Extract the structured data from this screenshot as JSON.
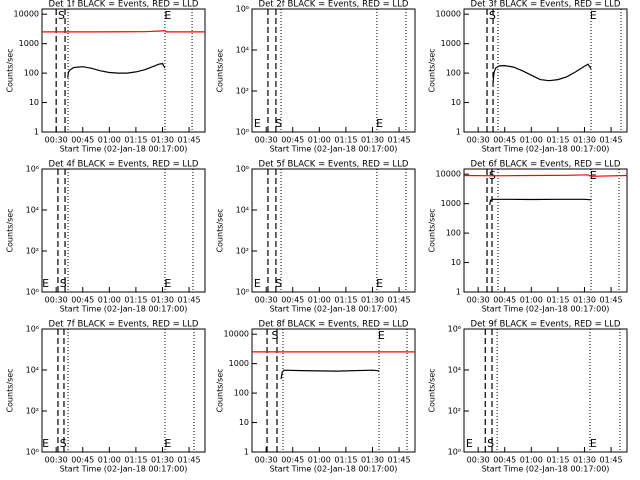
{
  "chart_data": [
    {
      "type": "line",
      "title": "Det 1f BLACK = Events, RED = LLD",
      "x_label": "Start Time (02-Jan-18 00:17:00)",
      "y_label": "Counts/sec",
      "ylog": true,
      "xlim": [
        22,
        114
      ],
      "xticks": [
        {
          "value": 30,
          "label": "00:30"
        },
        {
          "value": 45,
          "label": "00:45"
        },
        {
          "value": 60,
          "label": "01:00"
        },
        {
          "value": 75,
          "label": "01:15"
        },
        {
          "value": 90,
          "label": "01:30"
        },
        {
          "value": 105,
          "label": "01:45"
        }
      ],
      "ylim": [
        1,
        15000
      ],
      "yticks": [
        1,
        10,
        100,
        1000,
        10000
      ],
      "series": [
        {
          "color": "#000000",
          "x": [
            36.5,
            37,
            38,
            40,
            45,
            50,
            55,
            60,
            65,
            70,
            75,
            80,
            85,
            88,
            90,
            91.3
          ],
          "values": [
            70,
            110,
            130,
            155,
            165,
            145,
            120,
            105,
            100,
            100,
            110,
            130,
            170,
            200,
            210,
            150
          ]
        },
        {
          "color": "#ff0000",
          "x": [
            22,
            50,
            80,
            90,
            91.3,
            92,
            114
          ],
          "values": [
            2500,
            2500,
            2550,
            2700,
            2800,
            2500,
            2500
          ]
        }
      ],
      "vlines": [
        {
          "x": 30,
          "style": "dashed"
        },
        {
          "x": 35,
          "style": "dashed"
        },
        {
          "x": 36.7,
          "style": "dotted"
        },
        {
          "x": 91.4,
          "style": "dotted"
        },
        {
          "x": 106.7,
          "style": "dotted"
        }
      ],
      "annotation_pos": "top",
      "annotations": [
        {
          "text": "S",
          "x": 33
        },
        {
          "text": "E",
          "x": 93
        }
      ]
    },
    {
      "type": "line",
      "title": "Det 2f BLACK = Events, RED = LLD",
      "x_label": "Start Time (02-Jan-18 00:17:00)",
      "y_label": "Counts/sec",
      "ylog": true,
      "xlim": [
        22,
        114
      ],
      "xticks": [
        {
          "value": 30,
          "label": "00:30"
        },
        {
          "value": 45,
          "label": "00:45"
        },
        {
          "value": 60,
          "label": "01:00"
        },
        {
          "value": 75,
          "label": "01:15"
        },
        {
          "value": 90,
          "label": "01:30"
        },
        {
          "value": 105,
          "label": "01:45"
        }
      ],
      "ylim": [
        1,
        1000000
      ],
      "yticks": [
        {
          "value": 1,
          "label": "10⁰"
        },
        {
          "value": 100,
          "label": "10²"
        },
        {
          "value": 10000,
          "label": "10⁴"
        },
        {
          "value": 1000000,
          "label": "10⁶"
        }
      ],
      "series": [],
      "vlines": [
        {
          "x": 31,
          "style": "dashed"
        },
        {
          "x": 35.5,
          "style": "dashed"
        },
        {
          "x": 38.4,
          "style": "dotted"
        },
        {
          "x": 92.5,
          "style": "dotted"
        },
        {
          "x": 108.9,
          "style": "dotted"
        }
      ],
      "annotation_pos": "bottom",
      "annotations": [
        {
          "text": "E",
          "x": 25
        },
        {
          "text": "S",
          "x": 37
        },
        {
          "text": "E",
          "x": 94
        }
      ]
    },
    {
      "type": "line",
      "title": "Det 3f BLACK = Events, RED = LLD",
      "x_label": "Start Time (02-Jan-18 00:17:00)",
      "y_label": "Counts/sec",
      "ylog": true,
      "xlim": [
        22,
        114
      ],
      "xticks": [
        {
          "value": 30,
          "label": "00:30"
        },
        {
          "value": 45,
          "label": "00:45"
        },
        {
          "value": 60,
          "label": "01:00"
        },
        {
          "value": 75,
          "label": "01:15"
        },
        {
          "value": 90,
          "label": "01:30"
        },
        {
          "value": 105,
          "label": "01:45"
        }
      ],
      "ylim": [
        1,
        15000
      ],
      "yticks": [
        1,
        10,
        100,
        1000,
        10000
      ],
      "series": [
        {
          "color": "#000000",
          "x": [
            38.4,
            39,
            40,
            42,
            45,
            50,
            55,
            60,
            65,
            70,
            75,
            80,
            85,
            90,
            92,
            93.7
          ],
          "values": [
            50,
            110,
            150,
            175,
            180,
            160,
            120,
            85,
            60,
            55,
            60,
            75,
            110,
            170,
            200,
            140
          ]
        }
      ],
      "vlines": [
        {
          "x": 35,
          "style": "dashed"
        },
        {
          "x": 38.4,
          "style": "dashed"
        },
        {
          "x": 41.2,
          "style": "dotted"
        },
        {
          "x": 93.7,
          "style": "dotted"
        },
        {
          "x": 110.6,
          "style": "dotted"
        }
      ],
      "annotation_pos": "top",
      "annotations": [
        {
          "text": "S",
          "x": 38
        },
        {
          "text": "E",
          "x": 95
        }
      ]
    },
    {
      "type": "line",
      "title": "Det 4f BLACK = Events, RED = LLD",
      "x_label": "Start Time (02-Jan-18 00:17:00)",
      "y_label": "Counts/sec",
      "ylog": true,
      "xlim": [
        22,
        114
      ],
      "xticks": [
        {
          "value": 30,
          "label": "00:30"
        },
        {
          "value": 45,
          "label": "00:45"
        },
        {
          "value": 60,
          "label": "01:00"
        },
        {
          "value": 75,
          "label": "01:15"
        },
        {
          "value": 90,
          "label": "01:30"
        },
        {
          "value": 105,
          "label": "01:45"
        }
      ],
      "ylim": [
        1,
        1000000
      ],
      "yticks": [
        {
          "value": 1,
          "label": "10⁰"
        },
        {
          "value": 100,
          "label": "10²"
        },
        {
          "value": 10000,
          "label": "10⁴"
        },
        {
          "value": 1000000,
          "label": "10⁶"
        }
      ],
      "series": [],
      "vlines": [
        {
          "x": 31,
          "style": "dashed"
        },
        {
          "x": 35,
          "style": "dashed"
        },
        {
          "x": 36.7,
          "style": "dotted"
        },
        {
          "x": 91.4,
          "style": "dotted"
        },
        {
          "x": 107.2,
          "style": "dotted"
        }
      ],
      "annotation_pos": "bottom",
      "annotations": [
        {
          "text": "E",
          "x": 24
        },
        {
          "text": "S",
          "x": 34
        },
        {
          "text": "E",
          "x": 93
        }
      ]
    },
    {
      "type": "line",
      "title": "Det 5f BLACK = Events, RED = LLD",
      "x_label": "Start Time (02-Jan-18 00:17:00)",
      "y_label": "Counts/sec",
      "ylog": true,
      "xlim": [
        22,
        114
      ],
      "xticks": [
        {
          "value": 30,
          "label": "00:30"
        },
        {
          "value": 45,
          "label": "00:45"
        },
        {
          "value": 60,
          "label": "01:00"
        },
        {
          "value": 75,
          "label": "01:15"
        },
        {
          "value": 90,
          "label": "01:30"
        },
        {
          "value": 105,
          "label": "01:45"
        }
      ],
      "ylim": [
        1,
        1000000
      ],
      "yticks": [
        {
          "value": 1,
          "label": "10⁰"
        },
        {
          "value": 100,
          "label": "10²"
        },
        {
          "value": 10000,
          "label": "10⁴"
        },
        {
          "value": 1000000,
          "label": "10⁶"
        }
      ],
      "series": [],
      "vlines": [
        {
          "x": 31,
          "style": "dashed"
        },
        {
          "x": 35.5,
          "style": "dashed"
        },
        {
          "x": 38.4,
          "style": "dotted"
        },
        {
          "x": 92.5,
          "style": "dotted"
        },
        {
          "x": 108.9,
          "style": "dotted"
        }
      ],
      "annotation_pos": "bottom",
      "annotations": [
        {
          "text": "E",
          "x": 25
        },
        {
          "text": "S",
          "x": 37
        },
        {
          "text": "E",
          "x": 94
        }
      ]
    },
    {
      "type": "line",
      "title": "Det 6f BLACK = Events, RED = LLD",
      "x_label": "Start Time (02-Jan-18 00:17:00)",
      "y_label": "Counts/sec",
      "ylog": true,
      "xlim": [
        22,
        114
      ],
      "xticks": [
        {
          "value": 30,
          "label": "00:30"
        },
        {
          "value": 45,
          "label": "00:45"
        },
        {
          "value": 60,
          "label": "01:00"
        },
        {
          "value": 75,
          "label": "01:15"
        },
        {
          "value": 90,
          "label": "01:30"
        },
        {
          "value": 105,
          "label": "01:45"
        }
      ],
      "ylim": [
        1,
        15000
      ],
      "yticks": [
        1,
        10,
        100,
        1000,
        10000
      ],
      "series": [
        {
          "color": "#000000",
          "x": [
            36.5,
            37,
            38,
            45,
            60,
            75,
            90,
            93.7
          ],
          "values": [
            900,
            1300,
            1400,
            1400,
            1380,
            1400,
            1400,
            1350
          ]
        },
        {
          "color": "#ff0000",
          "x": [
            22,
            40,
            60,
            80,
            92,
            93.7,
            114
          ],
          "values": [
            9000,
            8800,
            9000,
            9200,
            9500,
            8500,
            9000
          ]
        }
      ],
      "vlines": [
        {
          "x": 35,
          "style": "dashed"
        },
        {
          "x": 37.8,
          "style": "dashed"
        },
        {
          "x": 41.2,
          "style": "dotted"
        },
        {
          "x": 93.7,
          "style": "dotted"
        },
        {
          "x": 109.5,
          "style": "dotted"
        }
      ],
      "annotation_pos": "top",
      "annotations": [
        {
          "text": "S",
          "x": 38
        },
        {
          "text": "E",
          "x": 95
        }
      ]
    },
    {
      "type": "line",
      "title": "Det 7f BLACK = Events, RED = LLD",
      "x_label": "Start Time (02-Jan-18 00:17:00)",
      "y_label": "Counts/sec",
      "ylog": true,
      "xlim": [
        22,
        114
      ],
      "xticks": [
        {
          "value": 30,
          "label": "00:30"
        },
        {
          "value": 45,
          "label": "00:45"
        },
        {
          "value": 60,
          "label": "01:00"
        },
        {
          "value": 75,
          "label": "01:15"
        },
        {
          "value": 90,
          "label": "01:30"
        },
        {
          "value": 105,
          "label": "01:45"
        }
      ],
      "ylim": [
        1,
        1000000
      ],
      "yticks": [
        {
          "value": 1,
          "label": "10⁰"
        },
        {
          "value": 100,
          "label": "10²"
        },
        {
          "value": 10000,
          "label": "10⁴"
        },
        {
          "value": 1000000,
          "label": "10⁶"
        }
      ],
      "series": [],
      "vlines": [
        {
          "x": 31,
          "style": "dashed"
        },
        {
          "x": 34.4,
          "style": "dashed"
        },
        {
          "x": 36.7,
          "style": "dotted"
        },
        {
          "x": 91.4,
          "style": "dotted"
        },
        {
          "x": 107.8,
          "style": "dotted"
        }
      ],
      "annotation_pos": "bottom",
      "annotations": [
        {
          "text": "E",
          "x": 24
        },
        {
          "text": "S",
          "x": 34
        },
        {
          "text": "E",
          "x": 93
        }
      ]
    },
    {
      "type": "line",
      "title": "Det 8f BLACK = Events, RED = LLD",
      "x_label": "Start Time (02-Jan-18 00:17:00)",
      "y_label": "Counts/sec",
      "ylog": true,
      "xlim": [
        22,
        114
      ],
      "xticks": [
        {
          "value": 30,
          "label": "00:30"
        },
        {
          "value": 45,
          "label": "00:45"
        },
        {
          "value": 60,
          "label": "01:00"
        },
        {
          "value": 75,
          "label": "01:15"
        },
        {
          "value": 90,
          "label": "01:30"
        },
        {
          "value": 105,
          "label": "01:45"
        }
      ],
      "ylim": [
        1,
        15000
      ],
      "yticks": [
        1,
        10,
        100,
        1000,
        10000
      ],
      "series": [
        {
          "color": "#000000",
          "x": [
            38.4,
            39,
            40,
            50,
            70,
            90,
            93.7
          ],
          "values": [
            300,
            500,
            600,
            580,
            560,
            600,
            570
          ]
        },
        {
          "color": "#ff0000",
          "x": [
            22,
            114
          ],
          "values": [
            2500,
            2500
          ]
        }
      ],
      "vlines": [
        {
          "x": 30.5,
          "style": "dashed"
        },
        {
          "x": 36.1,
          "style": "dashed"
        },
        {
          "x": 39.5,
          "style": "dotted"
        },
        {
          "x": 93.7,
          "style": "dotted"
        },
        {
          "x": 109.5,
          "style": "dotted"
        }
      ],
      "annotation_pos": "top",
      "annotations": [
        {
          "text": "S",
          "x": 35
        },
        {
          "text": "E",
          "x": 95
        }
      ]
    },
    {
      "type": "line",
      "title": "Det 9f BLACK = Events, RED = LLD",
      "x_label": "Start Time (02-Jan-18 00:17:00)",
      "y_label": "Counts/sec",
      "ylog": true,
      "xlim": [
        22,
        114
      ],
      "xticks": [
        {
          "value": 30,
          "label": "00:30"
        },
        {
          "value": 45,
          "label": "00:45"
        },
        {
          "value": 60,
          "label": "01:00"
        },
        {
          "value": 75,
          "label": "01:15"
        },
        {
          "value": 90,
          "label": "01:30"
        },
        {
          "value": 105,
          "label": "01:45"
        }
      ],
      "ylim": [
        1,
        1000000
      ],
      "yticks": [
        {
          "value": 1,
          "label": "10⁰"
        },
        {
          "value": 100,
          "label": "10²"
        },
        {
          "value": 10000,
          "label": "10⁴"
        },
        {
          "value": 1000000,
          "label": "10⁶"
        }
      ],
      "series": [],
      "vlines": [
        {
          "x": 34,
          "style": "dashed"
        },
        {
          "x": 37.8,
          "style": "dashed"
        },
        {
          "x": 40.7,
          "style": "dotted"
        },
        {
          "x": 93.1,
          "style": "dotted"
        },
        {
          "x": 110,
          "style": "dotted"
        }
      ],
      "annotation_pos": "bottom",
      "annotations": [
        {
          "text": "E",
          "x": 25
        },
        {
          "text": "S",
          "x": 37
        },
        {
          "text": "E",
          "x": 95
        }
      ]
    }
  ]
}
